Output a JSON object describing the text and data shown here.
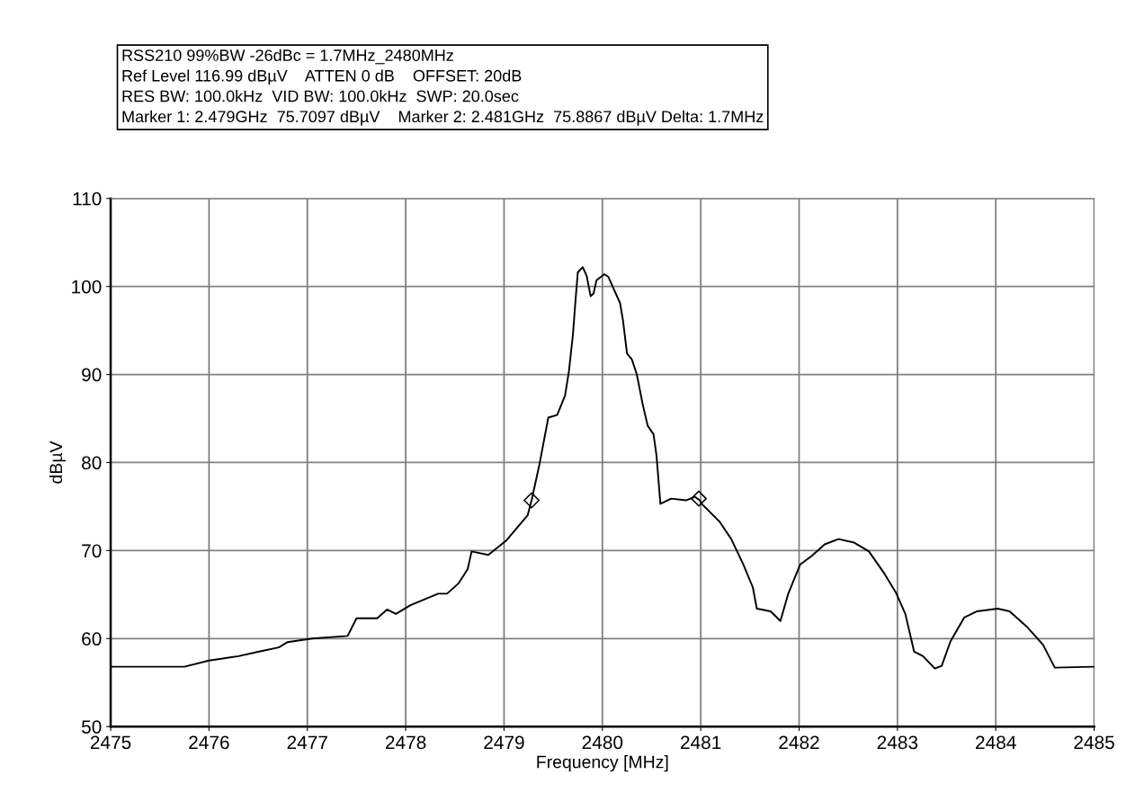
{
  "chart_data": {
    "type": "line",
    "xlabel": "Frequency [MHz]",
    "ylabel": "dBµV",
    "annotations": [
      "RSS210 99%BW -26dBc = 1.7MHz_2480MHz",
      "Ref Level 116.99 dBµV    ATTEN 0 dB    OFFSET: 20dB",
      "RES BW: 100.0kHz  VID BW: 100.0kHz  SWP: 20.0sec",
      "Marker 1: 2.479GHz  75.7097 dBµV    Marker 2: 2.481GHz  75.8867 dBµV Delta: 1.7MHz"
    ],
    "xlim": [
      2475,
      2485
    ],
    "xticks": [
      2475,
      2476,
      2477,
      2478,
      2479,
      2480,
      2481,
      2482,
      2483,
      2484,
      2485
    ],
    "ylim": [
      50,
      110
    ],
    "yticks": [
      50,
      60,
      70,
      80,
      90,
      100,
      110
    ],
    "grid": true,
    "series": [
      {
        "color": "#000000",
        "x": [
          2475,
          2475.75,
          2476.0,
          2476.3,
          2476.5,
          2476.71,
          2476.8,
          2477.05,
          2477.41,
          2477.5,
          2477.71,
          2477.81,
          2477.9,
          2478.05,
          2478.33,
          2478.42,
          2478.54,
          2478.63,
          2478.67,
          2478.84,
          2479.02,
          2479.24,
          2479.28,
          2479.36,
          2479.45,
          2479.54,
          2479.62,
          2479.66,
          2479.7,
          2479.73,
          2479.75,
          2479.8,
          2479.84,
          2479.88,
          2479.91,
          2479.94,
          2480.02,
          2480.06,
          2480.12,
          2480.18,
          2480.21,
          2480.25,
          2480.3,
          2480.35,
          2480.41,
          2480.46,
          2480.52,
          2480.55,
          2480.59,
          2480.7,
          2480.85,
          2480.94,
          2480.99,
          2481.01,
          2481.19,
          2481.31,
          2481.43,
          2481.53,
          2481.57,
          2481.71,
          2481.81,
          2481.89,
          2482.01,
          2482.13,
          2482.26,
          2482.4,
          2482.56,
          2482.71,
          2482.86,
          2482.99,
          2483.08,
          2483.17,
          2483.26,
          2483.38,
          2483.45,
          2483.54,
          2483.68,
          2483.81,
          2484.02,
          2484.14,
          2484.32,
          2484.48,
          2484.6,
          2485
        ],
        "values": [
          56.8,
          56.8,
          57.5,
          58.0,
          58.5,
          59.0,
          59.6,
          60.0,
          60.3,
          62.3,
          62.3,
          63.3,
          62.8,
          63.8,
          65.1,
          65.1,
          66.3,
          67.9,
          69.9,
          69.5,
          71.1,
          74.0,
          75.7,
          79.8,
          85.1,
          85.4,
          87.6,
          90.4,
          94.5,
          98.9,
          101.6,
          102.2,
          101.2,
          98.9,
          99.2,
          100.7,
          101.4,
          101.1,
          99.6,
          98.1,
          96.1,
          92.4,
          91.7,
          90.0,
          86.6,
          84.2,
          83.2,
          80.8,
          75.3,
          75.9,
          75.7,
          76.1,
          75.7,
          75.3,
          73.3,
          71.3,
          68.5,
          65.8,
          63.4,
          63.1,
          62.0,
          65.1,
          68.4,
          69.4,
          70.7,
          71.3,
          70.9,
          69.9,
          67.5,
          65.1,
          62.8,
          58.5,
          58.0,
          56.6,
          56.9,
          59.7,
          62.4,
          63.1,
          63.4,
          63.1,
          61.3,
          59.3,
          56.7,
          56.8
        ]
      },
      {
        "type": "scatter",
        "color": "#000000",
        "marker": "diamond",
        "x": [
          2479.28,
          2480.98
        ],
        "values": [
          75.7,
          75.9
        ]
      }
    ]
  }
}
